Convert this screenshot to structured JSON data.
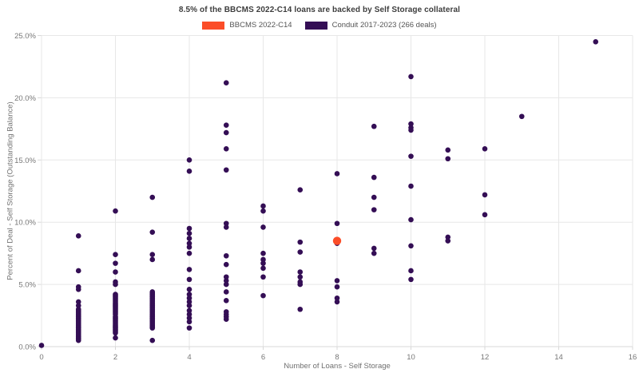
{
  "title": "8.5% of the BBCMS 2022-C14 loans are backed by Self Storage collateral",
  "colors": {
    "accent_orange": "#fb4d28",
    "accent_purple": "#340e55",
    "grid": "#e7e7e7",
    "axis_line": "#d8d8d8",
    "tick_label": "#777777",
    "title_text": "#3d3d3d",
    "axis_title_text": "#707070"
  },
  "chart_data": {
    "type": "scatter",
    "title": "8.5% of the BBCMS 2022-C14 loans are backed by Self Storage collateral",
    "xlabel": "Number of Loans - Self Storage",
    "ylabel": "Percent of Deal - Self Storage (Outstanding Balance)",
    "xlim": [
      0,
      16
    ],
    "ylim": [
      0,
      25
    ],
    "x_ticks": [
      0,
      2,
      4,
      6,
      8,
      10,
      12,
      14,
      16
    ],
    "x_tick_labels": [
      "0",
      "2",
      "4",
      "6",
      "8",
      "10",
      "12",
      "14",
      "16"
    ],
    "y_ticks": [
      0,
      5,
      10,
      15,
      20,
      25
    ],
    "y_tick_labels": [
      "0.0%",
      "5.0%",
      "10.0%",
      "15.0%",
      "20.0%",
      "25.0%"
    ],
    "grid": true,
    "legend_position": "top-center",
    "series": [
      {
        "name": "BBCMS 2022-C14",
        "color": "#fb4d28",
        "marker_radius": 5.2,
        "points": [
          [
            8,
            8.5
          ]
        ]
      },
      {
        "name": "Conduit 2017-2023 (266 deals)",
        "color": "#340e55",
        "marker_radius": 3.3,
        "points": [
          [
            0,
            0.1
          ],
          [
            1,
            8.9
          ],
          [
            1,
            6.1
          ],
          [
            1,
            4.8
          ],
          [
            1,
            4.6
          ],
          [
            1,
            3.6
          ],
          [
            1,
            3.3
          ],
          [
            1,
            3.0
          ],
          [
            1,
            2.9
          ],
          [
            1,
            2.8
          ],
          [
            1,
            2.7
          ],
          [
            1,
            2.6
          ],
          [
            1,
            2.5
          ],
          [
            1,
            2.4
          ],
          [
            1,
            2.3
          ],
          [
            1,
            2.2
          ],
          [
            1,
            2.1
          ],
          [
            1,
            2.0
          ],
          [
            1,
            1.9
          ],
          [
            1,
            1.8
          ],
          [
            1,
            1.7
          ],
          [
            1,
            1.6
          ],
          [
            1,
            1.5
          ],
          [
            1,
            1.4
          ],
          [
            1,
            1.3
          ],
          [
            1,
            1.2
          ],
          [
            1,
            1.1
          ],
          [
            1,
            1.0
          ],
          [
            1,
            0.9
          ],
          [
            1,
            0.8
          ],
          [
            1,
            0.7
          ],
          [
            1,
            0.6
          ],
          [
            1,
            0.5
          ],
          [
            2,
            10.9
          ],
          [
            2,
            7.4
          ],
          [
            2,
            6.7
          ],
          [
            2,
            6.0
          ],
          [
            2,
            5.2
          ],
          [
            2,
            5.0
          ],
          [
            2,
            4.2
          ],
          [
            2,
            4.1
          ],
          [
            2,
            4.0
          ],
          [
            2,
            3.9
          ],
          [
            2,
            3.8
          ],
          [
            2,
            3.7
          ],
          [
            2,
            3.6
          ],
          [
            2,
            3.5
          ],
          [
            2,
            3.4
          ],
          [
            2,
            3.3
          ],
          [
            2,
            3.2
          ],
          [
            2,
            3.1
          ],
          [
            2,
            3.0
          ],
          [
            2,
            2.9
          ],
          [
            2,
            2.8
          ],
          [
            2,
            2.7
          ],
          [
            2,
            2.6
          ],
          [
            2,
            2.4
          ],
          [
            2,
            2.3
          ],
          [
            2,
            2.2
          ],
          [
            2,
            2.1
          ],
          [
            2,
            2.0
          ],
          [
            2,
            1.9
          ],
          [
            2,
            1.8
          ],
          [
            2,
            1.7
          ],
          [
            2,
            1.6
          ],
          [
            2,
            1.5
          ],
          [
            2,
            1.4
          ],
          [
            2,
            1.3
          ],
          [
            2,
            1.2
          ],
          [
            2,
            1.1
          ],
          [
            2,
            0.7
          ],
          [
            3,
            12.0
          ],
          [
            3,
            9.2
          ],
          [
            3,
            7.4
          ],
          [
            3,
            7.0
          ],
          [
            3,
            4.4
          ],
          [
            3,
            4.3
          ],
          [
            3,
            4.2
          ],
          [
            3,
            4.1
          ],
          [
            3,
            4.0
          ],
          [
            3,
            3.9
          ],
          [
            3,
            3.8
          ],
          [
            3,
            3.7
          ],
          [
            3,
            3.6
          ],
          [
            3,
            3.5
          ],
          [
            3,
            3.4
          ],
          [
            3,
            3.3
          ],
          [
            3,
            3.2
          ],
          [
            3,
            3.1
          ],
          [
            3,
            3.0
          ],
          [
            3,
            2.9
          ],
          [
            3,
            2.8
          ],
          [
            3,
            2.7
          ],
          [
            3,
            2.6
          ],
          [
            3,
            2.5
          ],
          [
            3,
            2.4
          ],
          [
            3,
            2.3
          ],
          [
            3,
            2.2
          ],
          [
            3,
            2.1
          ],
          [
            3,
            2.0
          ],
          [
            3,
            1.9
          ],
          [
            3,
            1.8
          ],
          [
            3,
            1.7
          ],
          [
            3,
            1.6
          ],
          [
            3,
            1.5
          ],
          [
            3,
            0.5
          ],
          [
            4,
            15.0
          ],
          [
            4,
            14.1
          ],
          [
            4,
            9.5
          ],
          [
            4,
            9.1
          ],
          [
            4,
            8.7
          ],
          [
            4,
            8.3
          ],
          [
            4,
            8.0
          ],
          [
            4,
            7.5
          ],
          [
            4,
            6.2
          ],
          [
            4,
            5.4
          ],
          [
            4,
            4.6
          ],
          [
            4,
            4.2
          ],
          [
            4,
            3.9
          ],
          [
            4,
            3.6
          ],
          [
            4,
            3.3
          ],
          [
            4,
            2.9
          ],
          [
            4,
            2.6
          ],
          [
            4,
            2.3
          ],
          [
            4,
            2.0
          ],
          [
            4,
            1.5
          ],
          [
            5,
            21.2
          ],
          [
            5,
            17.8
          ],
          [
            5,
            17.2
          ],
          [
            5,
            15.9
          ],
          [
            5,
            14.2
          ],
          [
            5,
            9.9
          ],
          [
            5,
            9.6
          ],
          [
            5,
            7.3
          ],
          [
            5,
            6.6
          ],
          [
            5,
            5.6
          ],
          [
            5,
            5.3
          ],
          [
            5,
            5.0
          ],
          [
            5,
            4.4
          ],
          [
            5,
            3.7
          ],
          [
            5,
            2.8
          ],
          [
            5,
            2.6
          ],
          [
            5,
            2.4
          ],
          [
            5,
            2.2
          ],
          [
            6,
            11.3
          ],
          [
            6,
            10.9
          ],
          [
            6,
            9.6
          ],
          [
            6,
            7.5
          ],
          [
            6,
            7.0
          ],
          [
            6,
            6.7
          ],
          [
            6,
            6.3
          ],
          [
            6,
            5.6
          ],
          [
            6,
            4.1
          ],
          [
            7,
            12.6
          ],
          [
            7,
            8.4
          ],
          [
            7,
            7.6
          ],
          [
            7,
            6.0
          ],
          [
            7,
            5.6
          ],
          [
            7,
            5.2
          ],
          [
            7,
            5.0
          ],
          [
            7,
            3.0
          ],
          [
            8,
            13.9
          ],
          [
            8,
            9.9
          ],
          [
            8,
            8.3
          ],
          [
            8,
            5.3
          ],
          [
            8,
            4.8
          ],
          [
            8,
            3.9
          ],
          [
            8,
            3.6
          ],
          [
            9,
            17.7
          ],
          [
            9,
            13.6
          ],
          [
            9,
            12.0
          ],
          [
            9,
            11.0
          ],
          [
            9,
            7.9
          ],
          [
            9,
            7.5
          ],
          [
            10,
            21.7
          ],
          [
            10,
            17.9
          ],
          [
            10,
            17.6
          ],
          [
            10,
            17.4
          ],
          [
            10,
            15.3
          ],
          [
            10,
            12.9
          ],
          [
            10,
            10.2
          ],
          [
            10,
            8.1
          ],
          [
            10,
            6.1
          ],
          [
            10,
            5.4
          ],
          [
            11,
            15.8
          ],
          [
            11,
            15.1
          ],
          [
            11,
            8.8
          ],
          [
            11,
            8.5
          ],
          [
            12,
            15.9
          ],
          [
            12,
            12.2
          ],
          [
            12,
            10.6
          ],
          [
            13,
            18.5
          ],
          [
            15,
            24.5
          ]
        ]
      }
    ]
  }
}
